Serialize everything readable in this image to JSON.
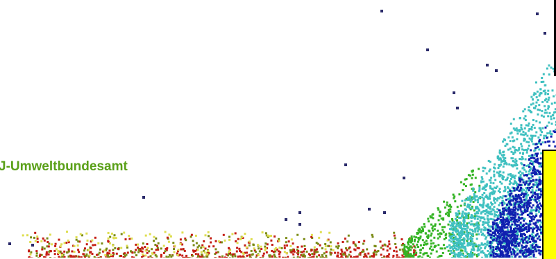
{
  "watermark": "J-Umweltbundesamt",
  "colors": {
    "watermark": "#5aa018",
    "legend_swatch": "#ffff00",
    "frame": "#000000",
    "band_1": "#c41e14",
    "band_2": "#7a8a14",
    "band_3": "#34b424",
    "band_4": "#3fc0c0",
    "band_5": "#1020b0",
    "outliers": "#2a2a6a",
    "yellow_points": "#dede50"
  },
  "chart_data": {
    "type": "scatter",
    "title": "",
    "xlabel": "",
    "ylabel": "",
    "grid": false,
    "legend": "",
    "series": [
      {
        "color_key": "band_1",
        "x_range": [
          0.08,
          0.74
        ],
        "y_range": [
          0.0,
          0.08
        ]
      },
      {
        "color_key": "band_2",
        "x_range": [
          0.05,
          0.78
        ],
        "y_range": [
          0.0,
          0.1
        ]
      },
      {
        "color_key": "band_3",
        "x_range": [
          0.72,
          0.86
        ],
        "y_range": [
          0.0,
          0.3
        ]
      },
      {
        "color_key": "band_4",
        "x_range": [
          0.8,
          1.0
        ],
        "y_range": [
          0.0,
          0.8
        ]
      },
      {
        "color_key": "band_5",
        "x_range": [
          0.9,
          1.0
        ],
        "y_range": [
          0.0,
          0.5
        ]
      }
    ]
  }
}
